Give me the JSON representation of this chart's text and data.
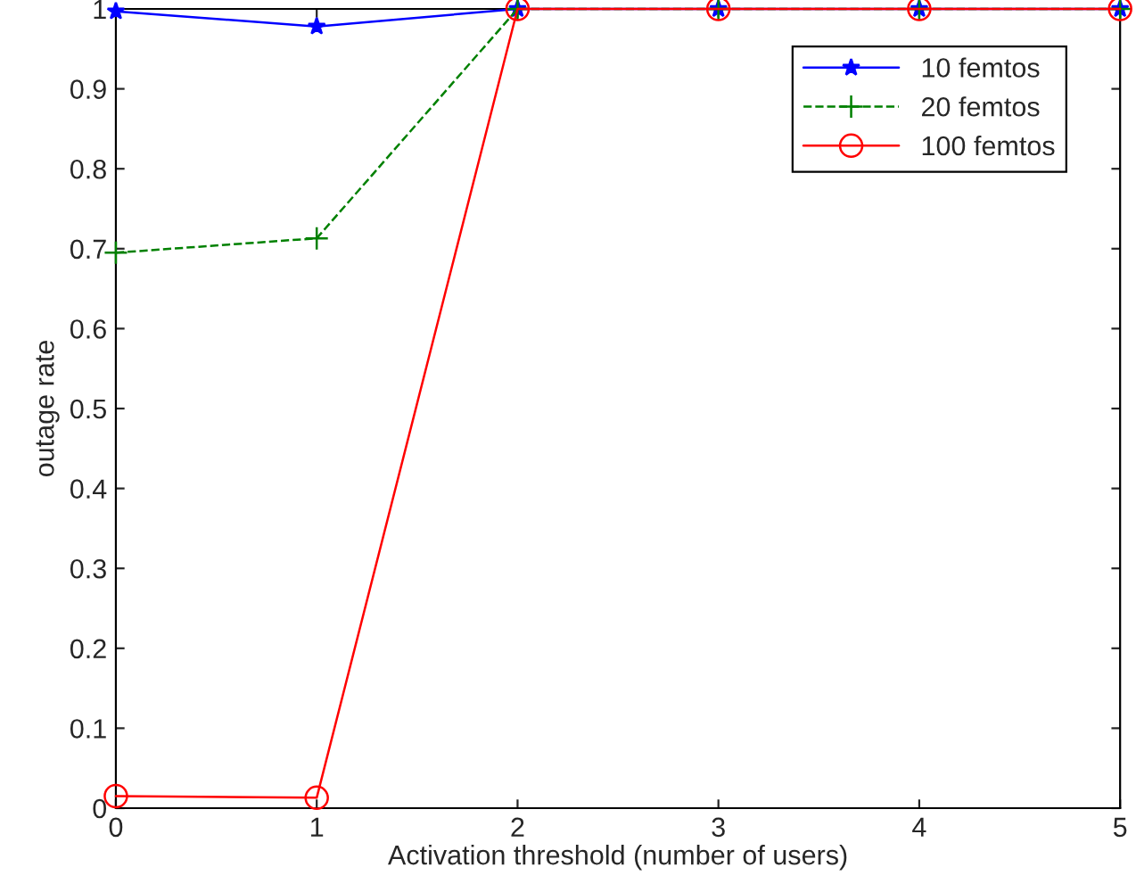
{
  "chart_data": {
    "type": "line",
    "xlabel": "Activation threshold (number of users)",
    "ylabel": "outage rate",
    "x": [
      0,
      1,
      2,
      3,
      4,
      5
    ],
    "series": [
      {
        "name": "10 femtos",
        "color": "#0000ff",
        "marker": "star",
        "line_style": "solid",
        "values": [
          0.997,
          0.978,
          1,
          1,
          1,
          1
        ]
      },
      {
        "name": "20 femtos",
        "color": "#008000",
        "marker": "cross",
        "line_style": "dashed",
        "values": [
          0.695,
          0.713,
          1,
          1,
          1,
          1
        ]
      },
      {
        "name": "100 femtos",
        "color": "#ff0000",
        "marker": "circle",
        "line_style": "solid",
        "values": [
          0.015,
          0.013,
          1,
          1,
          1,
          1
        ]
      }
    ],
    "xlim": [
      0,
      5
    ],
    "xticks": [
      0,
      1,
      2,
      3,
      4,
      5
    ],
    "ylim": [
      0,
      1
    ],
    "yticks": [
      0,
      0.1,
      0.2,
      0.3,
      0.4,
      0.5,
      0.6,
      0.7,
      0.8,
      0.9,
      1
    ],
    "grid": false,
    "legend": "top right"
  }
}
